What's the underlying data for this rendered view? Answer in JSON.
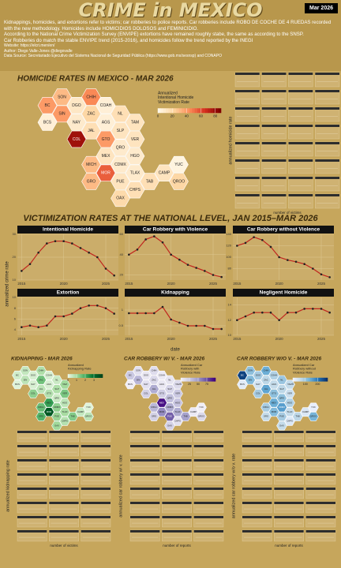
{
  "header": {
    "title": "CRIME in MEXICO",
    "date_badge": "Mar 2026",
    "description": [
      "Kidnappings, homicides, and extortions refer to victims; car robberies to police reports. Car robberies include ROBO DE COCHE DE 4 RUEDAS recorded with the new methodology. Homicides include HOMICIDIOS DOLOSOS and FEMINICIDIO.",
      "According to the National Crime Victimization Survey (ENVIPE) extortions have remained roughly stabe, the same as according to the SNSP.",
      "Car Robberies do match the stable ENVIPE trend (2015-2016), and homicides follow the trend reported by the INEGI"
    ],
    "website": "Website: https://elcri.men/en/",
    "author": "Author: Diego Valle-Jones @diegovalle",
    "data_source": "Data Source: Secretariado Ejecutivo del Sistema Nacional de Seguridad Pública (https://www.gob.mx/sesnsp) and CONAPO"
  },
  "national": {
    "title": "VICTIMIZATION RATES AT THE NATIONAL LEVEL, JAN 2015–MAR 2026",
    "y_label": "annualized crime rate",
    "x_label": "date"
  },
  "chart_data": [
    {
      "type": "hexmap",
      "title": "HOMICIDE RATES IN MEXICO - MAR 2026",
      "legend_title": [
        "Annualized",
        "Intentional Homicide",
        "Victimization Rate"
      ],
      "panel_y_label": "annualized homicide rate",
      "size_legend": "number of victims",
      "categories": [
        "SON",
        "CHIH",
        "BC",
        "DGO",
        "COAH",
        "SIN",
        "ZAC",
        "NL",
        "BCS",
        "NAY",
        "AGS",
        "TAM",
        "JAL",
        "SLP",
        "COL",
        "GTO",
        "VER",
        "QRO",
        "MEX",
        "HGO",
        "MICH",
        "CDMX",
        "YUC",
        "MOR",
        "TLAX",
        "CAMP",
        "GRO",
        "PUE",
        "TAB",
        "QROO",
        "CHPS",
        "OAX"
      ],
      "values": [
        30,
        45,
        40,
        10,
        5,
        40,
        20,
        15,
        5,
        8,
        5,
        12,
        15,
        12,
        80,
        40,
        12,
        8,
        12,
        8,
        30,
        8,
        2,
        55,
        8,
        12,
        30,
        12,
        15,
        20,
        15,
        18
      ],
      "colors": [
        "#fff7e6",
        "#fdd49e",
        "#fc8d59",
        "#d7301f",
        "#7f0000"
      ],
      "clim": [
        0,
        88
      ],
      "ticks": [
        0,
        20,
        40,
        60,
        80
      ]
    },
    {
      "type": "line",
      "title": "Intentional Homicide",
      "x": [
        2015,
        2016,
        2017,
        2018,
        2019,
        2020,
        2021,
        2022,
        2023,
        2024,
        2025,
        2026
      ],
      "values": [
        14,
        17,
        22,
        26,
        27,
        27,
        26,
        24,
        22,
        20,
        15,
        12
      ],
      "color": "#c0261f",
      "xlim": [
        2014.5,
        2026.5
      ],
      "xticks": [
        2015,
        2020,
        2025
      ],
      "ylim": [
        10,
        30
      ],
      "yticks": [
        10,
        20,
        30
      ]
    },
    {
      "type": "line",
      "title": "Car Robbery with Violence",
      "x": [
        2015,
        2016,
        2017,
        2018,
        2019,
        2020,
        2021,
        2022,
        2023,
        2024,
        2025,
        2026
      ],
      "values": [
        40,
        45,
        55,
        58,
        52,
        40,
        35,
        30,
        27,
        24,
        20,
        18
      ],
      "color": "#c0261f",
      "xlim": [
        2014.5,
        2026.5
      ],
      "xticks": [
        2015,
        2020,
        2025
      ],
      "ylim": [
        15,
        60
      ],
      "yticks": [
        20,
        40,
        60
      ]
    },
    {
      "type": "line",
      "title": "Car Robbery without Violence",
      "x": [
        2015,
        2016,
        2017,
        2018,
        2019,
        2020,
        2021,
        2022,
        2023,
        2024,
        2025,
        2026
      ],
      "values": [
        120,
        125,
        135,
        130,
        118,
        100,
        95,
        92,
        88,
        80,
        70,
        65
      ],
      "color": "#c0261f",
      "xlim": [
        2014.5,
        2026.5
      ],
      "xticks": [
        2015,
        2020,
        2025
      ],
      "ylim": [
        60,
        140
      ],
      "yticks": [
        80,
        100,
        120,
        140
      ]
    },
    {
      "type": "line",
      "title": "Extortion",
      "x": [
        2015,
        2016,
        2017,
        2018,
        2019,
        2020,
        2021,
        2022,
        2023,
        2024,
        2025,
        2026
      ],
      "values": [
        4.5,
        4.8,
        4.5,
        4.8,
        6.5,
        6.5,
        7,
        8,
        8.5,
        8.5,
        8,
        7
      ],
      "color": "#c0261f",
      "xlim": [
        2014.5,
        2026.5
      ],
      "xticks": [
        2015,
        2020,
        2025
      ],
      "ylim": [
        3,
        10
      ],
      "yticks": [
        4,
        6,
        8,
        10
      ]
    },
    {
      "type": "line",
      "title": "Kidnapping",
      "x": [
        2015,
        2016,
        2017,
        2018,
        2019,
        2020,
        2021,
        2022,
        2023,
        2024,
        2025,
        2026
      ],
      "values": [
        0.9,
        0.9,
        0.9,
        0.9,
        1.1,
        0.7,
        0.6,
        0.5,
        0.5,
        0.5,
        0.4,
        0.4
      ],
      "color": "#c0261f",
      "xlim": [
        2014.5,
        2026.5
      ],
      "xticks": [
        2015,
        2020,
        2025
      ],
      "ylim": [
        0.2,
        1.4
      ],
      "yticks": [
        0.5,
        1
      ]
    },
    {
      "type": "line",
      "title": "Negligent Homicide",
      "x": [
        2015,
        2016,
        2017,
        2018,
        2019,
        2020,
        2021,
        2022,
        2023,
        2024,
        2025,
        2026
      ],
      "values": [
        12,
        12.5,
        13,
        13,
        13,
        12,
        13,
        13,
        13.5,
        13.5,
        13.5,
        13
      ],
      "color": "#c0261f",
      "xlim": [
        2014.5,
        2026.5
      ],
      "xticks": [
        2015,
        2020,
        2025
      ],
      "ylim": [
        10,
        15
      ],
      "yticks": [
        10,
        12,
        14
      ]
    },
    {
      "type": "hexmap",
      "title": "KIDNAPPING - MAR 2026",
      "legend_title": [
        "Annualized",
        "Kidnapping Rate"
      ],
      "panel_y_label": "annualized kidnapping rate",
      "size_legend": "number of victims",
      "categories": [
        "SON",
        "CHIH",
        "BC",
        "DGO",
        "COAH",
        "SIN",
        "ZAC",
        "NL",
        "BCS",
        "NAY",
        "AGS",
        "TAM",
        "JAL",
        "SLP",
        "COL",
        "GTO",
        "VER",
        "QRO",
        "MEX",
        "HGO",
        "MICH",
        "CDMX",
        "YUC",
        "MOR",
        "TLAX",
        "CAMP",
        "GRO",
        "PUE",
        "TAB",
        "QROO",
        "CHPS",
        "OAX"
      ],
      "values": [
        0.5,
        0.8,
        0.3,
        0.2,
        0.2,
        0.6,
        1.5,
        0.4,
        0.1,
        0.2,
        0.2,
        1,
        0.6,
        0.8,
        1.2,
        0.7,
        1.4,
        0.4,
        2.2,
        0.6,
        1.6,
        1.2,
        0.1,
        3.5,
        0.9,
        0.5,
        1.8,
        1.1,
        1.3,
        0.6,
        0.7,
        1
      ],
      "colors": [
        "#e5f5e0",
        "#a1d99b",
        "#41ab5d",
        "#006d2c",
        "#00441b"
      ],
      "clim": [
        0,
        4
      ],
      "ticks": [
        0,
        1,
        2,
        3
      ]
    },
    {
      "type": "hexmap",
      "title": "CAR ROBBERY W/ V. - MAR 2026",
      "legend_title": [
        "Annualized Car",
        "Robbery with",
        "Violence Rate"
      ],
      "panel_y_label": "annualized car robbery w/ v. rate",
      "size_legend": "number of reports",
      "categories": [
        "SON",
        "CHIH",
        "BC",
        "DGO",
        "COAH",
        "SIN",
        "ZAC",
        "NL",
        "BCS",
        "NAY",
        "AGS",
        "TAM",
        "JAL",
        "SLP",
        "COL",
        "GTO",
        "VER",
        "QRO",
        "MEX",
        "HGO",
        "MICH",
        "CDMX",
        "YUC",
        "MOR",
        "TLAX",
        "CAMP",
        "GRO",
        "PUE",
        "TAB",
        "QROO",
        "CHPS",
        "OAX"
      ],
      "values": [
        10,
        12,
        25,
        6,
        4,
        35,
        15,
        8,
        2,
        10,
        6,
        14,
        40,
        18,
        20,
        22,
        25,
        30,
        95,
        28,
        35,
        40,
        1,
        55,
        40,
        5,
        20,
        70,
        45,
        15,
        10,
        20
      ],
      "colors": [
        "#f2f0f7",
        "#cbc9e2",
        "#9e9ac8",
        "#6a51a3",
        "#3f007d"
      ],
      "clim": [
        0,
        100
      ],
      "ticks": [
        0,
        25,
        50,
        75
      ]
    },
    {
      "type": "hexmap",
      "title": "CAR ROBBERY W/O V. - MAR 2026",
      "legend_title": [
        "Annualized Car",
        "Robbery without",
        "Violence Rate"
      ],
      "panel_y_label": "annualized car robbery w/o v. rate",
      "size_legend": "number of reports",
      "categories": [
        "SON",
        "CHIH",
        "BC",
        "DGO",
        "COAH",
        "SIN",
        "ZAC",
        "NL",
        "BCS",
        "NAY",
        "AGS",
        "TAM",
        "JAL",
        "SLP",
        "COL",
        "GTO",
        "VER",
        "QRO",
        "MEX",
        "HGO",
        "MICH",
        "CDMX",
        "YUC",
        "MOR",
        "TLAX",
        "CAMP",
        "GRO",
        "PUE",
        "TAB",
        "QROO",
        "CHPS",
        "OAX"
      ],
      "values": [
        110,
        140,
        260,
        90,
        80,
        120,
        70,
        100,
        20,
        40,
        60,
        60,
        150,
        70,
        90,
        110,
        50,
        110,
        140,
        80,
        90,
        160,
        10,
        120,
        60,
        30,
        60,
        90,
        70,
        130,
        30,
        60
      ],
      "colors": [
        "#eff3ff",
        "#bdd7e7",
        "#6baed6",
        "#2171b5",
        "#08306b"
      ],
      "clim": [
        0,
        280
      ],
      "ticks": [
        0,
        100,
        200
      ]
    }
  ]
}
